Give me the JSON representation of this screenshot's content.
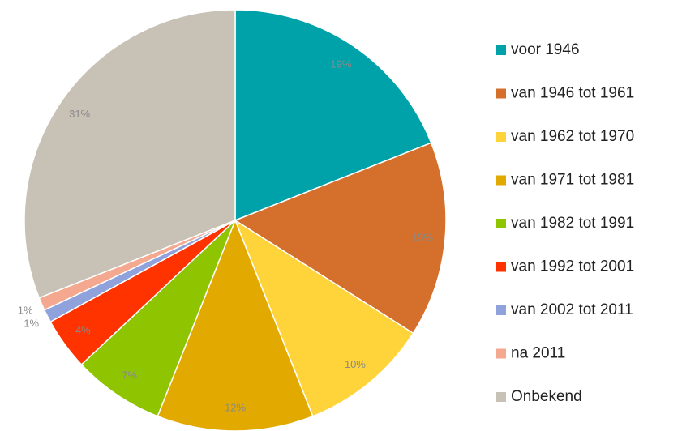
{
  "chart_data": {
    "type": "pie",
    "categories": [
      "voor 1946",
      "van 1946 tot 1961",
      "van 1962 tot 1970",
      "van 1971 tot 1981",
      "van 1982 tot 1991",
      "van 1992 tot 2001",
      "van 2002 tot 2011",
      "na 2011",
      "Onbekend"
    ],
    "values": [
      19,
      15,
      10,
      12,
      7,
      4,
      1,
      1,
      31
    ],
    "value_labels": [
      "19%",
      "15%",
      "10%",
      "12%",
      "7%",
      "4%",
      "1%",
      "1%",
      "31%"
    ],
    "colors": [
      "#00A2A9",
      "#D4702C",
      "#FFD43A",
      "#E2A900",
      "#8EC400",
      "#FF3300",
      "#8FA2DC",
      "#F4A890",
      "#C8C1B5"
    ],
    "legend": "right"
  }
}
